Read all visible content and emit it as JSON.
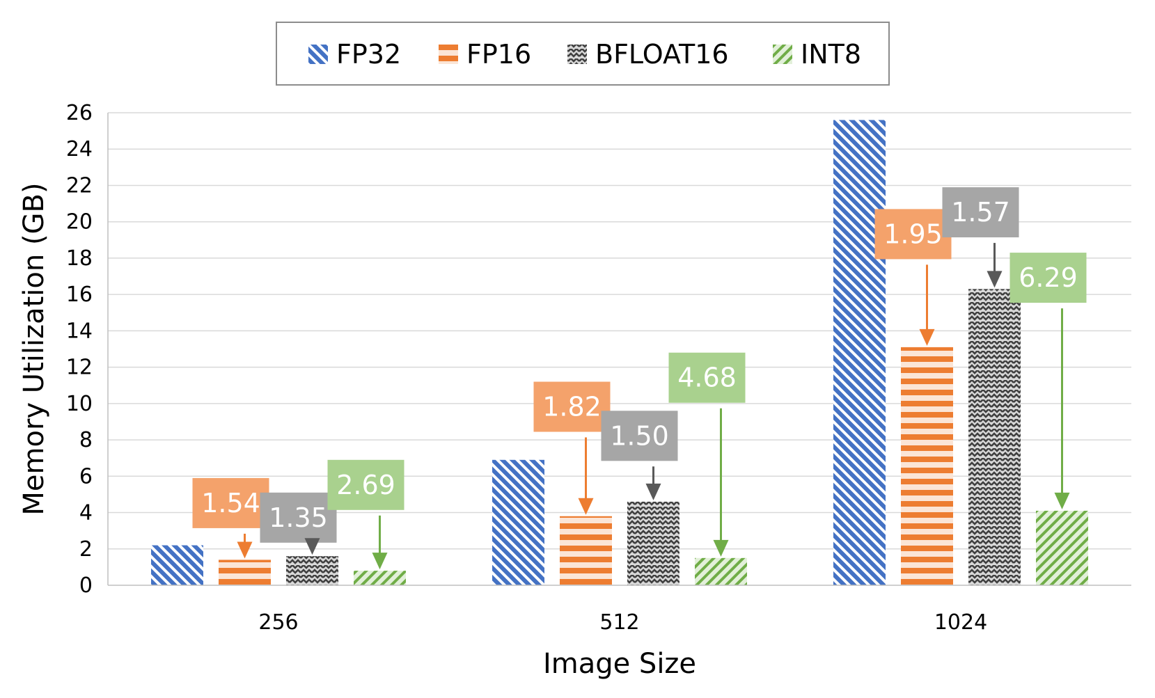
{
  "chart_data": {
    "type": "bar",
    "title": "",
    "xlabel": "Image Size",
    "ylabel": "Memory Utilization (GB)",
    "categories": [
      "256",
      "512",
      "1024"
    ],
    "ylim": [
      0,
      26
    ],
    "yticks": [
      "0",
      "2",
      "4",
      "6",
      "8",
      "10",
      "12",
      "14",
      "16",
      "18",
      "20",
      "22",
      "24",
      "26"
    ],
    "grid": true,
    "legend_position": "top",
    "series": [
      {
        "name": "FP32",
        "color": "#4472c4",
        "pattern": "diagonal-stripes",
        "values": [
          2.2,
          6.9,
          25.6
        ]
      },
      {
        "name": "FP16",
        "color": "#ed7d31",
        "pattern": "horizontal-stripes",
        "values": [
          1.4,
          3.8,
          13.1
        ]
      },
      {
        "name": "BFLOAT16",
        "color": "#7f7f7f",
        "pattern": "wave",
        "values": [
          1.6,
          4.6,
          16.3
        ]
      },
      {
        "name": "INT8",
        "color": "#70ad47",
        "pattern": "diagonal-stripes-reverse",
        "values": [
          0.8,
          1.5,
          4.1
        ]
      }
    ],
    "annotations": [
      {
        "series": "FP16",
        "category": "256",
        "label": "1.54"
      },
      {
        "series": "BFLOAT16",
        "category": "256",
        "label": "1.35"
      },
      {
        "series": "INT8",
        "category": "256",
        "label": "2.69"
      },
      {
        "series": "FP16",
        "category": "512",
        "label": "1.82"
      },
      {
        "series": "BFLOAT16",
        "category": "512",
        "label": "1.50"
      },
      {
        "series": "INT8",
        "category": "512",
        "label": "4.68"
      },
      {
        "series": "FP16",
        "category": "1024",
        "label": "1.95"
      },
      {
        "series": "BFLOAT16",
        "category": "1024",
        "label": "1.57"
      },
      {
        "series": "INT8",
        "category": "1024",
        "label": "6.29"
      }
    ]
  }
}
